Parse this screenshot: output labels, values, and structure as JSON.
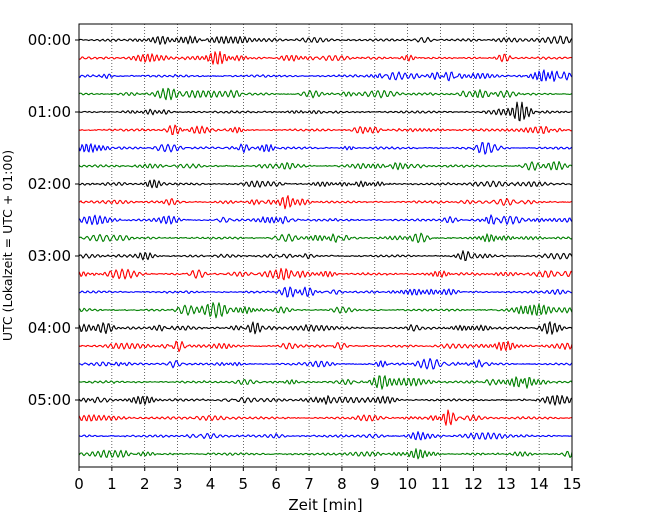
{
  "chart_data": {
    "type": "line",
    "title": "",
    "xlabel": "Zeit  [min]",
    "ylabel": "UTC (Lokalzeit = UTC + 01:00)",
    "xlim": [
      0,
      15
    ],
    "x_ticks": [
      "0",
      "1",
      "2",
      "3",
      "4",
      "5",
      "6",
      "7",
      "8",
      "9",
      "10",
      "11",
      "12",
      "13",
      "14",
      "15"
    ],
    "y_ticks": [
      "00:00",
      "01:00",
      "02:00",
      "03:00",
      "04:00",
      "05:00"
    ],
    "grid": "vertical dotted",
    "trace_interval_min": 15,
    "trace_count": 24,
    "trace_colors": [
      "#000000",
      "#ff0000",
      "#0000ff",
      "#008000"
    ]
  }
}
